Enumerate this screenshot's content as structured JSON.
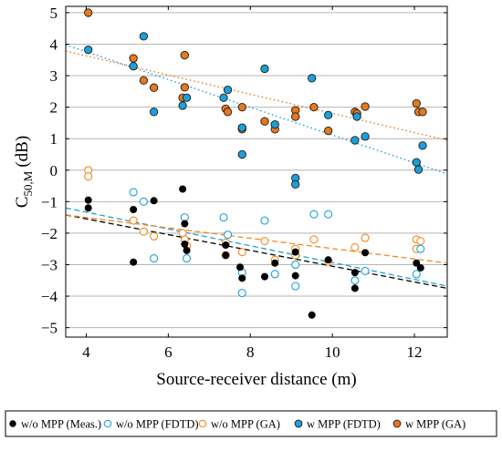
{
  "chart_data": {
    "type": "scatter",
    "xlabel": "Source-receiver distance (m)",
    "ylabel_main": "C",
    "ylabel_sub": "50,M",
    "ylabel_unit": "(dB)",
    "xlim": [
      3.5,
      12.8
    ],
    "ylim": [
      -5.3,
      5.2
    ],
    "xticks": [
      4,
      6,
      8,
      10,
      12
    ],
    "yticks": [
      -5,
      -4,
      -3,
      -2,
      -1,
      0,
      1,
      2,
      3,
      4,
      5
    ],
    "grid": "horizontal",
    "legend_position": "bottom",
    "series": [
      {
        "name": "w/o MPP (Meas.)",
        "marker": "filled",
        "color": "#000000",
        "points": [
          [
            4.05,
            -0.95
          ],
          [
            4.05,
            -1.2
          ],
          [
            5.15,
            -2.92
          ],
          [
            5.15,
            -1.25
          ],
          [
            5.65,
            -0.97
          ],
          [
            6.35,
            -0.6
          ],
          [
            6.4,
            -1.7
          ],
          [
            6.4,
            -2.35
          ],
          [
            6.45,
            -2.55
          ],
          [
            7.4,
            -2.38
          ],
          [
            7.4,
            -2.7
          ],
          [
            7.75,
            -3.08
          ],
          [
            7.8,
            -3.43
          ],
          [
            8.35,
            -3.38
          ],
          [
            8.6,
            -2.95
          ],
          [
            9.1,
            -3.35
          ],
          [
            9.1,
            -2.6
          ],
          [
            9.5,
            -4.6
          ],
          [
            9.9,
            -2.85
          ],
          [
            10.55,
            -3.25
          ],
          [
            10.55,
            -3.75
          ],
          [
            10.8,
            -2.62
          ],
          [
            12.05,
            -2.95
          ],
          [
            12.15,
            -3.1
          ]
        ],
        "trend": [
          [
            3.5,
            -1.42
          ],
          [
            12.8,
            -3.75
          ]
        ]
      },
      {
        "name": "w/o MPP (FDTD)",
        "marker": "hollow",
        "color": "#1ba1d8",
        "points": [
          [
            5.15,
            -0.7
          ],
          [
            5.4,
            -1.0
          ],
          [
            5.65,
            -2.8
          ],
          [
            6.4,
            -1.5
          ],
          [
            6.45,
            -2.8
          ],
          [
            7.35,
            -1.5
          ],
          [
            7.45,
            -2.05
          ],
          [
            7.8,
            -3.25
          ],
          [
            7.8,
            -3.9
          ],
          [
            8.35,
            -1.6
          ],
          [
            8.6,
            -3.3
          ],
          [
            9.1,
            -3.0
          ],
          [
            9.1,
            -3.68
          ],
          [
            9.55,
            -1.4
          ],
          [
            9.9,
            -1.4
          ],
          [
            10.55,
            -3.5
          ],
          [
            10.8,
            -3.2
          ],
          [
            12.05,
            -3.3
          ],
          [
            12.15,
            -2.5
          ]
        ],
        "trend": [
          [
            3.5,
            -1.2
          ],
          [
            12.8,
            -3.68
          ]
        ]
      },
      {
        "name": "w/o MPP (GA)",
        "marker": "hollow",
        "color": "#f08a1e",
        "points": [
          [
            4.05,
            0.0
          ],
          [
            4.05,
            -0.2
          ],
          [
            5.15,
            -1.6
          ],
          [
            5.4,
            -1.95
          ],
          [
            5.65,
            -2.1
          ],
          [
            6.35,
            -2.0
          ],
          [
            6.4,
            -2.2
          ],
          [
            6.45,
            -2.4
          ],
          [
            7.4,
            -2.3
          ],
          [
            7.4,
            -2.7
          ],
          [
            7.8,
            -2.6
          ],
          [
            8.35,
            -2.25
          ],
          [
            8.6,
            -2.85
          ],
          [
            9.1,
            -2.5
          ],
          [
            9.1,
            -2.7
          ],
          [
            9.55,
            -2.2
          ],
          [
            9.9,
            -2.9
          ],
          [
            10.55,
            -2.45
          ],
          [
            10.8,
            -2.15
          ],
          [
            12.05,
            -2.2
          ],
          [
            12.15,
            -2.25
          ],
          [
            12.05,
            -2.5
          ]
        ],
        "trend": [
          [
            3.5,
            -1.42
          ],
          [
            12.8,
            -2.95
          ]
        ]
      },
      {
        "name": "w MPP (FDTD)",
        "marker": "filled-outlined",
        "color": "#1ba1d8",
        "points": [
          [
            4.05,
            3.82
          ],
          [
            5.15,
            3.3
          ],
          [
            5.4,
            4.25
          ],
          [
            5.65,
            1.85
          ],
          [
            6.35,
            2.05
          ],
          [
            6.45,
            2.3
          ],
          [
            7.35,
            2.3
          ],
          [
            7.45,
            2.55
          ],
          [
            7.8,
            0.5
          ],
          [
            7.8,
            1.35
          ],
          [
            8.35,
            3.22
          ],
          [
            8.6,
            1.45
          ],
          [
            9.1,
            -0.25
          ],
          [
            9.1,
            -0.45
          ],
          [
            9.5,
            2.92
          ],
          [
            9.9,
            1.75
          ],
          [
            10.55,
            0.95
          ],
          [
            10.6,
            1.7
          ],
          [
            10.8,
            1.07
          ],
          [
            12.05,
            0.25
          ],
          [
            12.1,
            0.02
          ],
          [
            12.2,
            0.78
          ]
        ],
        "trend": [
          [
            3.5,
            3.98
          ],
          [
            12.8,
            -0.12
          ]
        ]
      },
      {
        "name": "w MPP (GA)",
        "marker": "filled-outlined",
        "color": "#e8781e",
        "points": [
          [
            4.05,
            5.0
          ],
          [
            5.15,
            3.55
          ],
          [
            5.4,
            2.85
          ],
          [
            5.65,
            2.62
          ],
          [
            6.35,
            2.3
          ],
          [
            6.4,
            2.63
          ],
          [
            6.4,
            3.65
          ],
          [
            7.4,
            1.95
          ],
          [
            7.45,
            1.85
          ],
          [
            7.8,
            2.0
          ],
          [
            7.8,
            1.3
          ],
          [
            8.35,
            1.55
          ],
          [
            8.6,
            1.3
          ],
          [
            9.1,
            1.9
          ],
          [
            9.1,
            1.7
          ],
          [
            9.55,
            2.0
          ],
          [
            9.9,
            1.25
          ],
          [
            10.55,
            1.85
          ],
          [
            10.6,
            1.8
          ],
          [
            10.8,
            2.02
          ],
          [
            12.05,
            2.12
          ],
          [
            12.1,
            1.85
          ],
          [
            12.2,
            1.85
          ]
        ],
        "trend": [
          [
            3.5,
            3.78
          ],
          [
            12.8,
            0.95
          ]
        ]
      }
    ]
  }
}
